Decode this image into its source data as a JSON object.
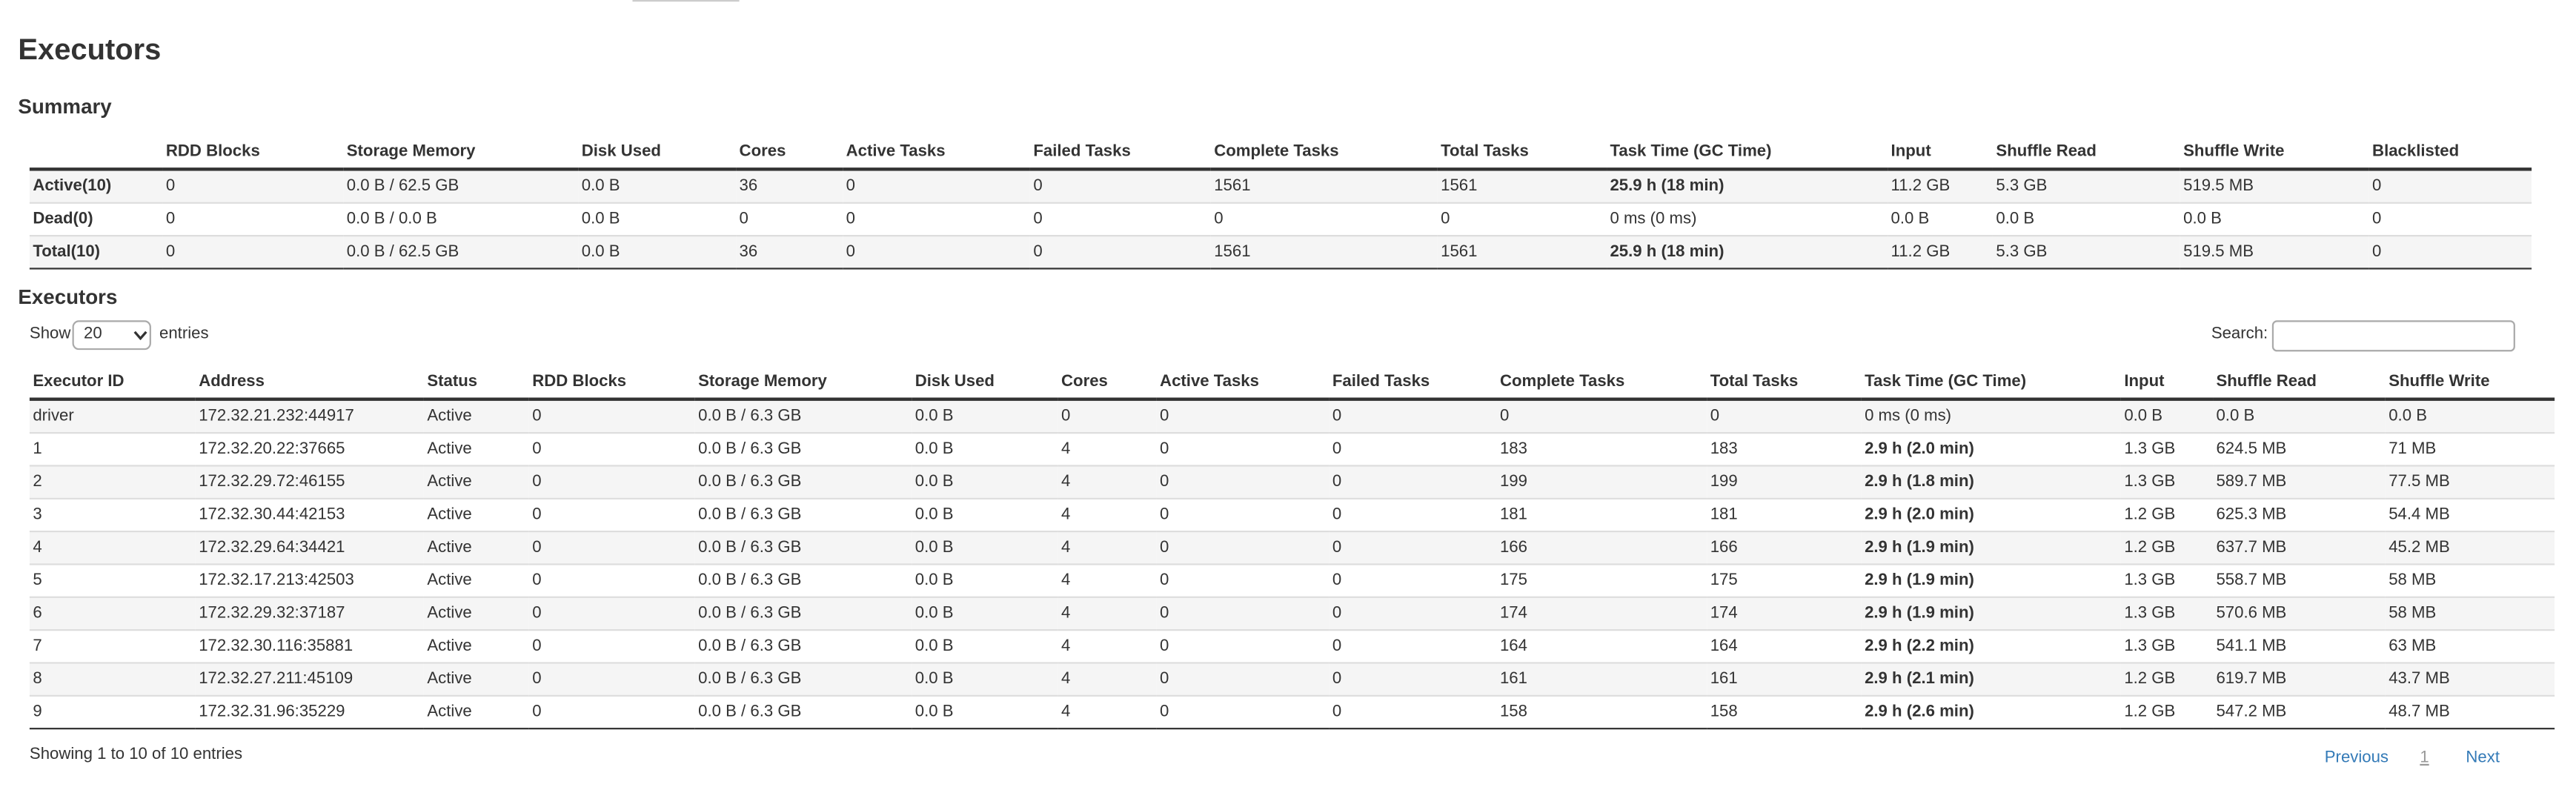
{
  "header": {
    "title": "Executors"
  },
  "summary": {
    "title": "Summary",
    "columns": [
      "",
      "RDD Blocks",
      "Storage Memory",
      "Disk Used",
      "Cores",
      "Active Tasks",
      "Failed Tasks",
      "Complete Tasks",
      "Total Tasks",
      "Task Time (GC Time)",
      "Input",
      "Shuffle Read",
      "Shuffle Write",
      "Blacklisted"
    ],
    "rows": [
      [
        "Active(10)",
        "0",
        "0.0 B / 62.5 GB",
        "0.0 B",
        "36",
        "0",
        "0",
        "1561",
        "1561",
        "25.9 h (18 min)",
        "11.2 GB",
        "5.3 GB",
        "519.5 MB",
        "0"
      ],
      [
        "Dead(0)",
        "0",
        "0.0 B / 0.0 B",
        "0.0 B",
        "0",
        "0",
        "0",
        "0",
        "0",
        "0 ms (0 ms)",
        "0.0 B",
        "0.0 B",
        "0.0 B",
        "0"
      ],
      [
        "Total(10)",
        "0",
        "0.0 B / 62.5 GB",
        "0.0 B",
        "36",
        "0",
        "0",
        "1561",
        "1561",
        "25.9 h (18 min)",
        "11.2 GB",
        "5.3 GB",
        "519.5 MB",
        "0"
      ]
    ]
  },
  "executors": {
    "title": "Executors",
    "show_label": "Show",
    "page_size": "20",
    "entries_label": "entries",
    "search_label": "Search:",
    "columns": [
      "Executor ID",
      "Address",
      "Status",
      "RDD Blocks",
      "Storage Memory",
      "Disk Used",
      "Cores",
      "Active Tasks",
      "Failed Tasks",
      "Complete Tasks",
      "Total Tasks",
      "Task Time (GC Time)",
      "Input",
      "Shuffle Read",
      "Shuffle Write"
    ],
    "rows": [
      [
        "driver",
        "172.32.21.232:44917",
        "Active",
        "0",
        "0.0 B / 6.3 GB",
        "0.0 B",
        "0",
        "0",
        "0",
        "0",
        "0",
        "0 ms (0 ms)",
        "0.0 B",
        "0.0 B",
        "0.0 B"
      ],
      [
        "1",
        "172.32.20.22:37665",
        "Active",
        "0",
        "0.0 B / 6.3 GB",
        "0.0 B",
        "4",
        "0",
        "0",
        "183",
        "183",
        "2.9 h (2.0 min)",
        "1.3 GB",
        "624.5 MB",
        "71 MB"
      ],
      [
        "2",
        "172.32.29.72:46155",
        "Active",
        "0",
        "0.0 B / 6.3 GB",
        "0.0 B",
        "4",
        "0",
        "0",
        "199",
        "199",
        "2.9 h (1.8 min)",
        "1.3 GB",
        "589.7 MB",
        "77.5 MB"
      ],
      [
        "3",
        "172.32.30.44:42153",
        "Active",
        "0",
        "0.0 B / 6.3 GB",
        "0.0 B",
        "4",
        "0",
        "0",
        "181",
        "181",
        "2.9 h (2.0 min)",
        "1.2 GB",
        "625.3 MB",
        "54.4 MB"
      ],
      [
        "4",
        "172.32.29.64:34421",
        "Active",
        "0",
        "0.0 B / 6.3 GB",
        "0.0 B",
        "4",
        "0",
        "0",
        "166",
        "166",
        "2.9 h (1.9 min)",
        "1.2 GB",
        "637.7 MB",
        "45.2 MB"
      ],
      [
        "5",
        "172.32.17.213:42503",
        "Active",
        "0",
        "0.0 B / 6.3 GB",
        "0.0 B",
        "4",
        "0",
        "0",
        "175",
        "175",
        "2.9 h (1.9 min)",
        "1.3 GB",
        "558.7 MB",
        "58 MB"
      ],
      [
        "6",
        "172.32.29.32:37187",
        "Active",
        "0",
        "0.0 B / 6.3 GB",
        "0.0 B",
        "4",
        "0",
        "0",
        "174",
        "174",
        "2.9 h (1.9 min)",
        "1.3 GB",
        "570.6 MB",
        "58 MB"
      ],
      [
        "7",
        "172.32.30.116:35881",
        "Active",
        "0",
        "0.0 B / 6.3 GB",
        "0.0 B",
        "4",
        "0",
        "0",
        "164",
        "164",
        "2.9 h (2.2 min)",
        "1.3 GB",
        "541.1 MB",
        "63 MB"
      ],
      [
        "8",
        "172.32.27.211:45109",
        "Active",
        "0",
        "0.0 B / 6.3 GB",
        "0.0 B",
        "4",
        "0",
        "0",
        "161",
        "161",
        "2.9 h (2.1 min)",
        "1.2 GB",
        "619.7 MB",
        "43.7 MB"
      ],
      [
        "9",
        "172.32.31.96:35229",
        "Active",
        "0",
        "0.0 B / 6.3 GB",
        "0.0 B",
        "4",
        "0",
        "0",
        "158",
        "158",
        "2.9 h (2.6 min)",
        "1.2 GB",
        "547.2 MB",
        "48.7 MB"
      ]
    ],
    "footer": "Showing 1 to 10 of 10 entries",
    "pagination": {
      "previous": "Previous",
      "page": "1",
      "next": "Next"
    }
  }
}
